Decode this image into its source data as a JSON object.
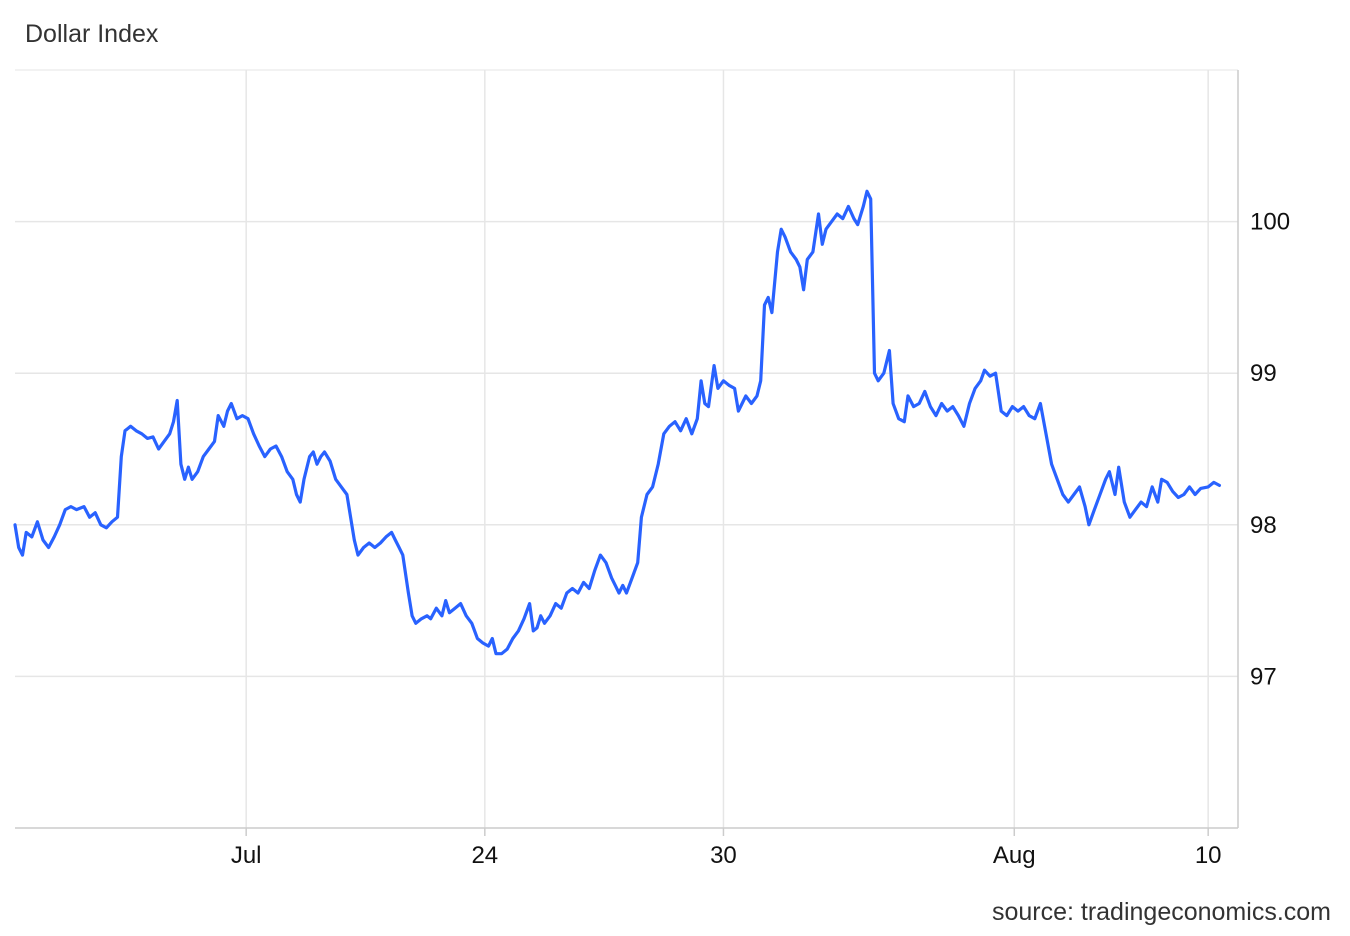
{
  "title": "Dollar Index",
  "source": "source: tradingeconomics.com",
  "colors": {
    "line": "#2962ff",
    "grid": "#e6e6e6",
    "axis": "#cccccc"
  },
  "chart_data": {
    "type": "line",
    "title": "Dollar Index",
    "xlabel": "",
    "ylabel": "",
    "grid": true,
    "y_axis_position": "right",
    "ylim": [
      96.0,
      101.0
    ],
    "yticks": [
      {
        "value": 97,
        "label": "97"
      },
      {
        "value": 98,
        "label": "98"
      },
      {
        "value": 99,
        "label": "99"
      },
      {
        "value": 100,
        "label": "100"
      }
    ],
    "xlim": [
      0,
      32.8
    ],
    "xticks": [
      {
        "value": 6.2,
        "label": "Jul"
      },
      {
        "value": 12.6,
        "label": "24"
      },
      {
        "value": 19.0,
        "label": "30"
      },
      {
        "value": 26.8,
        "label": "Aug"
      },
      {
        "value": 32.0,
        "label": "10"
      }
    ],
    "series": [
      {
        "values": [
          [
            0.0,
            98.0
          ],
          [
            0.1,
            97.85
          ],
          [
            0.2,
            97.8
          ],
          [
            0.3,
            97.95
          ],
          [
            0.45,
            97.92
          ],
          [
            0.6,
            98.02
          ],
          [
            0.75,
            97.9
          ],
          [
            0.9,
            97.85
          ],
          [
            1.05,
            97.92
          ],
          [
            1.2,
            98.0
          ],
          [
            1.35,
            98.1
          ],
          [
            1.5,
            98.12
          ],
          [
            1.65,
            98.1
          ],
          [
            1.85,
            98.12
          ],
          [
            2.0,
            98.05
          ],
          [
            2.15,
            98.08
          ],
          [
            2.3,
            98.0
          ],
          [
            2.45,
            97.98
          ],
          [
            2.6,
            98.02
          ],
          [
            2.75,
            98.05
          ],
          [
            2.85,
            98.45
          ],
          [
            2.95,
            98.62
          ],
          [
            3.1,
            98.65
          ],
          [
            3.25,
            98.62
          ],
          [
            3.4,
            98.6
          ],
          [
            3.55,
            98.57
          ],
          [
            3.7,
            98.58
          ],
          [
            3.85,
            98.5
          ],
          [
            4.0,
            98.55
          ],
          [
            4.15,
            98.6
          ],
          [
            4.25,
            98.68
          ],
          [
            4.35,
            98.82
          ],
          [
            4.45,
            98.4
          ],
          [
            4.55,
            98.3
          ],
          [
            4.65,
            98.38
          ],
          [
            4.75,
            98.3
          ],
          [
            4.9,
            98.35
          ],
          [
            5.05,
            98.45
          ],
          [
            5.2,
            98.5
          ],
          [
            5.35,
            98.55
          ],
          [
            5.45,
            98.72
          ],
          [
            5.6,
            98.65
          ],
          [
            5.7,
            98.75
          ],
          [
            5.8,
            98.8
          ],
          [
            5.95,
            98.7
          ],
          [
            6.1,
            98.72
          ],
          [
            6.25,
            98.7
          ],
          [
            6.4,
            98.6
          ],
          [
            6.55,
            98.52
          ],
          [
            6.7,
            98.45
          ],
          [
            6.85,
            98.5
          ],
          [
            7.0,
            98.52
          ],
          [
            7.15,
            98.45
          ],
          [
            7.3,
            98.35
          ],
          [
            7.45,
            98.3
          ],
          [
            7.55,
            98.2
          ],
          [
            7.65,
            98.15
          ],
          [
            7.75,
            98.3
          ],
          [
            7.9,
            98.45
          ],
          [
            8.0,
            98.48
          ],
          [
            8.1,
            98.4
          ],
          [
            8.2,
            98.45
          ],
          [
            8.3,
            98.48
          ],
          [
            8.45,
            98.42
          ],
          [
            8.6,
            98.3
          ],
          [
            8.75,
            98.25
          ],
          [
            8.9,
            98.2
          ],
          [
            9.0,
            98.05
          ],
          [
            9.1,
            97.9
          ],
          [
            9.2,
            97.8
          ],
          [
            9.35,
            97.85
          ],
          [
            9.5,
            97.88
          ],
          [
            9.65,
            97.85
          ],
          [
            9.8,
            97.88
          ],
          [
            9.95,
            97.92
          ],
          [
            10.1,
            97.95
          ],
          [
            10.2,
            97.9
          ],
          [
            10.3,
            97.85
          ],
          [
            10.4,
            97.8
          ],
          [
            10.55,
            97.55
          ],
          [
            10.65,
            97.4
          ],
          [
            10.75,
            97.35
          ],
          [
            10.9,
            97.38
          ],
          [
            11.05,
            97.4
          ],
          [
            11.15,
            97.38
          ],
          [
            11.3,
            97.45
          ],
          [
            11.45,
            97.4
          ],
          [
            11.55,
            97.5
          ],
          [
            11.65,
            97.42
          ],
          [
            11.8,
            97.45
          ],
          [
            11.95,
            97.48
          ],
          [
            12.1,
            97.4
          ],
          [
            12.25,
            97.35
          ],
          [
            12.4,
            97.25
          ],
          [
            12.55,
            97.22
          ],
          [
            12.7,
            97.2
          ],
          [
            12.8,
            97.25
          ],
          [
            12.9,
            97.15
          ],
          [
            13.05,
            97.15
          ],
          [
            13.2,
            97.18
          ],
          [
            13.35,
            97.25
          ],
          [
            13.5,
            97.3
          ],
          [
            13.65,
            97.38
          ],
          [
            13.8,
            97.48
          ],
          [
            13.9,
            97.3
          ],
          [
            14.0,
            97.32
          ],
          [
            14.1,
            97.4
          ],
          [
            14.2,
            97.35
          ],
          [
            14.35,
            97.4
          ],
          [
            14.5,
            97.48
          ],
          [
            14.65,
            97.45
          ],
          [
            14.8,
            97.55
          ],
          [
            14.95,
            97.58
          ],
          [
            15.1,
            97.55
          ],
          [
            15.25,
            97.62
          ],
          [
            15.4,
            97.58
          ],
          [
            15.55,
            97.7
          ],
          [
            15.7,
            97.8
          ],
          [
            15.85,
            97.75
          ],
          [
            16.0,
            97.65
          ],
          [
            16.1,
            97.6
          ],
          [
            16.2,
            97.55
          ],
          [
            16.3,
            97.6
          ],
          [
            16.4,
            97.55
          ],
          [
            16.55,
            97.65
          ],
          [
            16.7,
            97.75
          ],
          [
            16.8,
            98.05
          ],
          [
            16.95,
            98.2
          ],
          [
            17.1,
            98.25
          ],
          [
            17.25,
            98.4
          ],
          [
            17.4,
            98.6
          ],
          [
            17.55,
            98.65
          ],
          [
            17.7,
            98.68
          ],
          [
            17.85,
            98.62
          ],
          [
            18.0,
            98.7
          ],
          [
            18.15,
            98.6
          ],
          [
            18.3,
            98.7
          ],
          [
            18.4,
            98.95
          ],
          [
            18.5,
            98.8
          ],
          [
            18.6,
            98.78
          ],
          [
            18.75,
            99.05
          ],
          [
            18.85,
            98.9
          ],
          [
            19.0,
            98.95
          ],
          [
            19.15,
            98.92
          ],
          [
            19.3,
            98.9
          ],
          [
            19.4,
            98.75
          ],
          [
            19.5,
            98.8
          ],
          [
            19.6,
            98.85
          ],
          [
            19.75,
            98.8
          ],
          [
            19.9,
            98.85
          ],
          [
            20.0,
            98.95
          ],
          [
            20.1,
            99.45
          ],
          [
            20.2,
            99.5
          ],
          [
            20.3,
            99.4
          ],
          [
            20.45,
            99.8
          ],
          [
            20.55,
            99.95
          ],
          [
            20.65,
            99.9
          ],
          [
            20.8,
            99.8
          ],
          [
            20.95,
            99.75
          ],
          [
            21.05,
            99.7
          ],
          [
            21.15,
            99.55
          ],
          [
            21.25,
            99.75
          ],
          [
            21.4,
            99.8
          ],
          [
            21.55,
            100.05
          ],
          [
            21.65,
            99.85
          ],
          [
            21.75,
            99.95
          ],
          [
            21.9,
            100.0
          ],
          [
            22.05,
            100.05
          ],
          [
            22.2,
            100.02
          ],
          [
            22.35,
            100.1
          ],
          [
            22.5,
            100.02
          ],
          [
            22.6,
            99.98
          ],
          [
            22.75,
            100.1
          ],
          [
            22.85,
            100.2
          ],
          [
            22.95,
            100.15
          ],
          [
            23.05,
            99.0
          ],
          [
            23.15,
            98.95
          ],
          [
            23.3,
            99.0
          ],
          [
            23.45,
            99.15
          ],
          [
            23.55,
            98.8
          ],
          [
            23.7,
            98.7
          ],
          [
            23.85,
            98.68
          ],
          [
            23.95,
            98.85
          ],
          [
            24.1,
            98.78
          ],
          [
            24.25,
            98.8
          ],
          [
            24.4,
            98.88
          ],
          [
            24.55,
            98.78
          ],
          [
            24.7,
            98.72
          ],
          [
            24.85,
            98.8
          ],
          [
            25.0,
            98.75
          ],
          [
            25.15,
            98.78
          ],
          [
            25.3,
            98.72
          ],
          [
            25.45,
            98.65
          ],
          [
            25.6,
            98.8
          ],
          [
            25.75,
            98.9
          ],
          [
            25.9,
            98.95
          ],
          [
            26.0,
            99.02
          ],
          [
            26.15,
            98.98
          ],
          [
            26.3,
            99.0
          ],
          [
            26.45,
            98.75
          ],
          [
            26.6,
            98.72
          ],
          [
            26.75,
            98.78
          ],
          [
            26.9,
            98.75
          ],
          [
            27.05,
            98.78
          ],
          [
            27.2,
            98.72
          ],
          [
            27.35,
            98.7
          ],
          [
            27.5,
            98.8
          ],
          [
            27.65,
            98.6
          ],
          [
            27.8,
            98.4
          ],
          [
            27.95,
            98.3
          ],
          [
            28.1,
            98.2
          ],
          [
            28.25,
            98.15
          ],
          [
            28.4,
            98.2
          ],
          [
            28.55,
            98.25
          ],
          [
            28.7,
            98.12
          ],
          [
            28.8,
            98.0
          ],
          [
            28.95,
            98.1
          ],
          [
            29.1,
            98.2
          ],
          [
            29.25,
            98.3
          ],
          [
            29.35,
            98.35
          ],
          [
            29.5,
            98.2
          ],
          [
            29.6,
            98.38
          ],
          [
            29.75,
            98.15
          ],
          [
            29.9,
            98.05
          ],
          [
            30.05,
            98.1
          ],
          [
            30.2,
            98.15
          ],
          [
            30.35,
            98.12
          ],
          [
            30.5,
            98.25
          ],
          [
            30.65,
            98.15
          ],
          [
            30.75,
            98.3
          ],
          [
            30.9,
            98.28
          ],
          [
            31.05,
            98.22
          ],
          [
            31.2,
            98.18
          ],
          [
            31.35,
            98.2
          ],
          [
            31.5,
            98.25
          ],
          [
            31.65,
            98.2
          ],
          [
            31.8,
            98.24
          ],
          [
            32.0,
            98.25
          ],
          [
            32.15,
            98.28
          ],
          [
            32.3,
            98.26
          ]
        ]
      }
    ]
  }
}
